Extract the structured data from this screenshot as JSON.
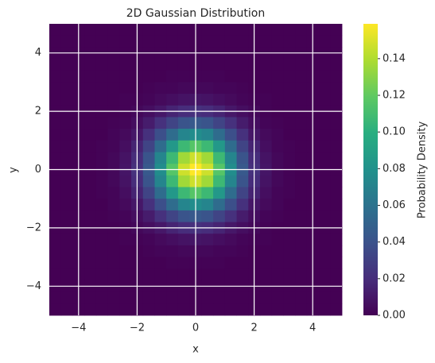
{
  "chart_data": {
    "type": "heatmap",
    "title": "2D Gaussian Distribution",
    "xlabel": "x",
    "ylabel": "y",
    "colorbar_label": "Probability Density",
    "colormap": "viridis",
    "grid": true,
    "xlim": [
      -5,
      5
    ],
    "ylim": [
      -5,
      5
    ],
    "xticks": [
      {
        "value": -4,
        "label": "−4"
      },
      {
        "value": -2,
        "label": "−2"
      },
      0,
      2,
      4
    ],
    "yticks": [
      {
        "value": -4,
        "label": "−4"
      },
      {
        "value": -2,
        "label": "−2"
      },
      0,
      2,
      4
    ],
    "clim": [
      0,
      0.159
    ],
    "cticks": [
      {
        "value": 0,
        "label": "0.00"
      },
      {
        "value": 0.02,
        "label": "0.02"
      },
      {
        "value": 0.04,
        "label": "0.04"
      },
      {
        "value": 0.06,
        "label": "0.06"
      },
      {
        "value": 0.08,
        "label": "0.08"
      },
      {
        "value": 0.1,
        "label": "0.10"
      },
      {
        "value": 0.12,
        "label": "0.12"
      },
      {
        "value": 0.14,
        "label": "0.14"
      }
    ],
    "z": [
      [
        0,
        0,
        0,
        0,
        0,
        0,
        0,
        0,
        0,
        0,
        0,
        0,
        0,
        0,
        0,
        0,
        0,
        0,
        0,
        0,
        0,
        0,
        0,
        0,
        0
      ],
      [
        0,
        0,
        0,
        0,
        0,
        0,
        0,
        0,
        0,
        0,
        0,
        0,
        0,
        0,
        0,
        0,
        0,
        0,
        0,
        0,
        0,
        0,
        0,
        0,
        0
      ],
      [
        0,
        0,
        0,
        0,
        0,
        0,
        0,
        0,
        0,
        0,
        0,
        0,
        0,
        0,
        0,
        0,
        0,
        0,
        0,
        0,
        0,
        0,
        0,
        0,
        0
      ],
      [
        0,
        0,
        0,
        0,
        0,
        0,
        0,
        0,
        0,
        0,
        0,
        0,
        0,
        0,
        0,
        0,
        0,
        0,
        0,
        0,
        0,
        0,
        0,
        0,
        0
      ],
      [
        0,
        0,
        0,
        0,
        0,
        0,
        0,
        0,
        0,
        0,
        0.001,
        0.001,
        0.001,
        0.001,
        0.001,
        0,
        0,
        0,
        0,
        0,
        0,
        0,
        0,
        0,
        0
      ],
      [
        0,
        0,
        0,
        0,
        0,
        0,
        0,
        0,
        0.001,
        0.002,
        0.002,
        0.003,
        0.003,
        0.003,
        0.002,
        0.002,
        0.001,
        0,
        0,
        0,
        0,
        0,
        0,
        0,
        0
      ],
      [
        0,
        0,
        0,
        0,
        0,
        0,
        0.001,
        0.001,
        0.002,
        0.004,
        0.006,
        0.008,
        0.009,
        0.008,
        0.006,
        0.004,
        0.002,
        0.001,
        0.001,
        0,
        0,
        0,
        0,
        0,
        0
      ],
      [
        0,
        0,
        0,
        0,
        0,
        0,
        0.001,
        0.003,
        0.006,
        0.01,
        0.016,
        0.02,
        0.022,
        0.02,
        0.016,
        0.01,
        0.006,
        0.003,
        0.001,
        0,
        0,
        0,
        0,
        0,
        0
      ],
      [
        0,
        0,
        0,
        0,
        0,
        0.001,
        0.002,
        0.006,
        0.012,
        0.022,
        0.032,
        0.041,
        0.044,
        0.041,
        0.032,
        0.022,
        0.012,
        0.006,
        0.002,
        0.001,
        0,
        0,
        0,
        0,
        0
      ],
      [
        0,
        0,
        0,
        0,
        0,
        0.002,
        0.004,
        0.01,
        0.022,
        0.038,
        0.056,
        0.072,
        0.077,
        0.072,
        0.056,
        0.038,
        0.022,
        0.01,
        0.004,
        0.002,
        0,
        0,
        0,
        0,
        0
      ],
      [
        0,
        0,
        0,
        0,
        0.001,
        0.002,
        0.006,
        0.016,
        0.032,
        0.056,
        0.084,
        0.107,
        0.116,
        0.107,
        0.084,
        0.056,
        0.032,
        0.016,
        0.006,
        0.002,
        0.001,
        0,
        0,
        0,
        0
      ],
      [
        0,
        0,
        0,
        0,
        0.001,
        0.003,
        0.008,
        0.02,
        0.041,
        0.072,
        0.107,
        0.136,
        0.147,
        0.136,
        0.107,
        0.072,
        0.041,
        0.02,
        0.008,
        0.003,
        0.001,
        0,
        0,
        0,
        0
      ],
      [
        0,
        0,
        0,
        0,
        0.001,
        0.003,
        0.009,
        0.022,
        0.044,
        0.077,
        0.116,
        0.147,
        0.159,
        0.147,
        0.116,
        0.077,
        0.044,
        0.022,
        0.009,
        0.003,
        0.001,
        0,
        0,
        0,
        0
      ],
      [
        0,
        0,
        0,
        0,
        0.001,
        0.003,
        0.008,
        0.02,
        0.041,
        0.072,
        0.107,
        0.136,
        0.147,
        0.136,
        0.107,
        0.072,
        0.041,
        0.02,
        0.008,
        0.003,
        0.001,
        0,
        0,
        0,
        0
      ],
      [
        0,
        0,
        0,
        0,
        0.001,
        0.002,
        0.006,
        0.016,
        0.032,
        0.056,
        0.084,
        0.107,
        0.116,
        0.107,
        0.084,
        0.056,
        0.032,
        0.016,
        0.006,
        0.002,
        0.001,
        0,
        0,
        0,
        0
      ],
      [
        0,
        0,
        0,
        0,
        0,
        0.002,
        0.004,
        0.01,
        0.022,
        0.038,
        0.056,
        0.072,
        0.077,
        0.072,
        0.056,
        0.038,
        0.022,
        0.01,
        0.004,
        0.002,
        0,
        0,
        0,
        0,
        0
      ],
      [
        0,
        0,
        0,
        0,
        0,
        0.001,
        0.002,
        0.006,
        0.012,
        0.022,
        0.032,
        0.041,
        0.044,
        0.041,
        0.032,
        0.022,
        0.012,
        0.006,
        0.002,
        0.001,
        0,
        0,
        0,
        0,
        0
      ],
      [
        0,
        0,
        0,
        0,
        0,
        0,
        0.001,
        0.003,
        0.006,
        0.01,
        0.016,
        0.02,
        0.022,
        0.02,
        0.016,
        0.01,
        0.006,
        0.003,
        0.001,
        0,
        0,
        0,
        0,
        0,
        0
      ],
      [
        0,
        0,
        0,
        0,
        0,
        0,
        0.001,
        0.001,
        0.002,
        0.004,
        0.006,
        0.008,
        0.009,
        0.008,
        0.006,
        0.004,
        0.002,
        0.001,
        0.001,
        0,
        0,
        0,
        0,
        0,
        0
      ],
      [
        0,
        0,
        0,
        0,
        0,
        0,
        0,
        0,
        0.001,
        0.002,
        0.002,
        0.003,
        0.003,
        0.003,
        0.002,
        0.002,
        0.001,
        0,
        0,
        0,
        0,
        0,
        0,
        0,
        0
      ],
      [
        0,
        0,
        0,
        0,
        0,
        0,
        0,
        0,
        0,
        0,
        0.001,
        0.001,
        0.001,
        0.001,
        0.001,
        0,
        0,
        0,
        0,
        0,
        0,
        0,
        0,
        0,
        0
      ],
      [
        0,
        0,
        0,
        0,
        0,
        0,
        0,
        0,
        0,
        0,
        0,
        0,
        0,
        0,
        0,
        0,
        0,
        0,
        0,
        0,
        0,
        0,
        0,
        0,
        0
      ],
      [
        0,
        0,
        0,
        0,
        0,
        0,
        0,
        0,
        0,
        0,
        0,
        0,
        0,
        0,
        0,
        0,
        0,
        0,
        0,
        0,
        0,
        0,
        0,
        0,
        0
      ],
      [
        0,
        0,
        0,
        0,
        0,
        0,
        0,
        0,
        0,
        0,
        0,
        0,
        0,
        0,
        0,
        0,
        0,
        0,
        0,
        0,
        0,
        0,
        0,
        0,
        0
      ],
      [
        0,
        0,
        0,
        0,
        0,
        0,
        0,
        0,
        0,
        0,
        0,
        0,
        0,
        0,
        0,
        0,
        0,
        0,
        0,
        0,
        0,
        0,
        0,
        0,
        0
      ]
    ]
  }
}
